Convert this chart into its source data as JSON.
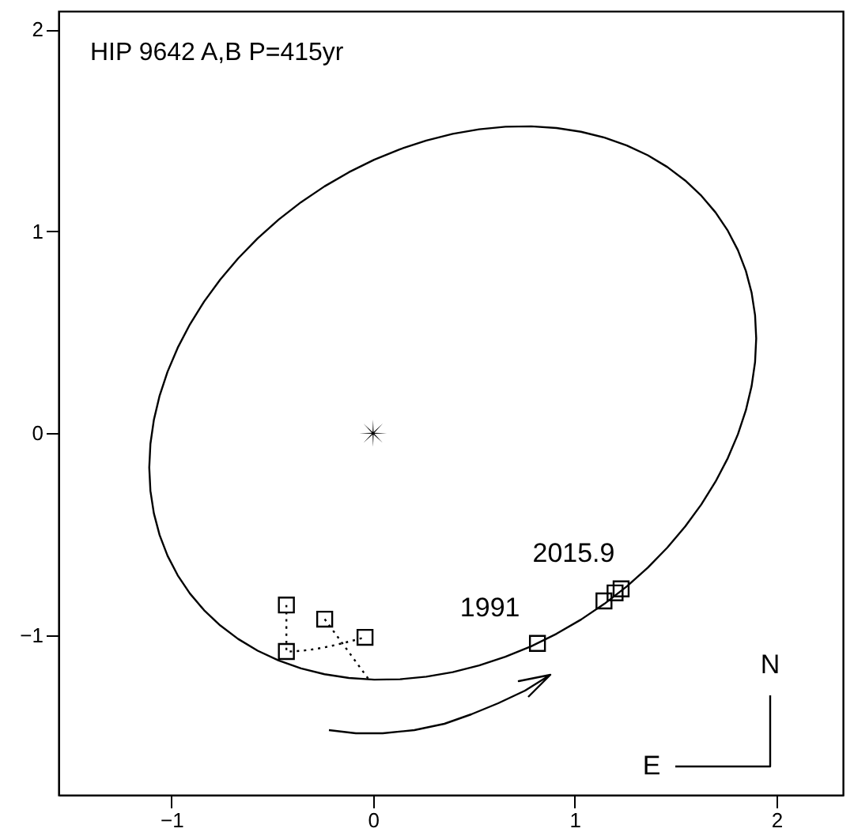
{
  "chart_data": {
    "type": "line",
    "title": "HIP 9642 A,B  P=415yr",
    "xlim": [
      -1.56,
      2.33
    ],
    "ylim": [
      -1.79,
      2.09
    ],
    "xticks": [
      {
        "value": -1,
        "label": "−1"
      },
      0,
      1,
      2
    ],
    "yticks": [
      {
        "value": -1,
        "label": "−1"
      },
      0,
      1,
      2
    ],
    "grid": false,
    "series": [
      {
        "color": "#000000",
        "line_style": "dotted",
        "marker": "none",
        "x": [
          -0.43,
          -0.43,
          -0.04
        ],
        "values": [
          -0.85,
          -1.08,
          -1.01
        ]
      },
      {
        "type": "line",
        "color": "#000000",
        "line_style": "dotted",
        "marker": "none",
        "x": [
          -0.24,
          -0.02
        ],
        "values": [
          -0.92,
          -1.22
        ]
      },
      {
        "type": "scatter",
        "color": "#000000",
        "marker": "square",
        "x": [
          -0.43,
          -0.43,
          -0.24,
          -0.04
        ],
        "values": [
          -0.85,
          -1.08,
          -0.92,
          -1.01
        ]
      },
      {
        "type": "scatter",
        "color": "#000000",
        "marker": "square",
        "x": [
          0.815,
          1.145,
          1.2,
          1.23
        ],
        "values": [
          -1.04,
          -0.83,
          -0.79,
          -0.77
        ]
      },
      {
        "type": "scatter",
        "color": "#000000",
        "marker": "star",
        "x": [
          0
        ],
        "values": [
          0
        ]
      }
    ],
    "annotations": [
      {
        "text": "1991",
        "x": 0.815,
        "y": -1.04
      },
      {
        "text": "2015.9",
        "x": 1.23,
        "y": -0.77
      },
      "N",
      "E"
    ]
  }
}
